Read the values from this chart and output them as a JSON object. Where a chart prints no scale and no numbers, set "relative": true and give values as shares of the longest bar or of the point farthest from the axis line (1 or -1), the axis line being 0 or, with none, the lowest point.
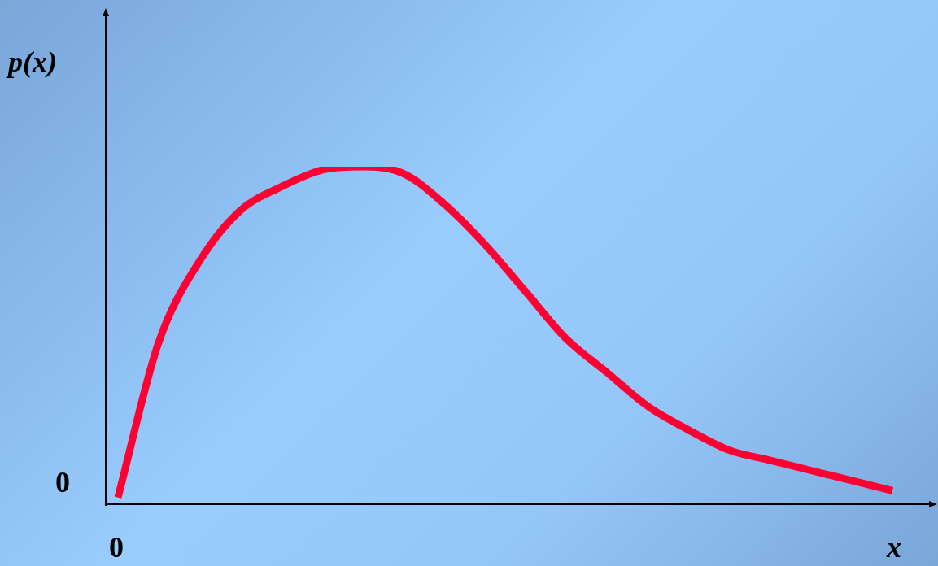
{
  "chart_data": {
    "type": "line",
    "relative": true,
    "xlabel": "x",
    "ylabel": "p(x)",
    "color": "#ff0033",
    "marker": "none",
    "line_style": "solid",
    "legend": false,
    "annotations": [
      "0",
      "0"
    ],
    "categories": [
      null,
      null,
      null,
      null,
      null,
      null,
      null,
      null,
      null,
      null,
      null,
      null,
      null,
      null,
      null,
      null,
      null,
      null,
      null,
      null
    ],
    "values": [
      0.02,
      0.48,
      0.72,
      0.87,
      0.94,
      0.99,
      1.0,
      0.98,
      0.89,
      0.77,
      0.63,
      0.49,
      0.39,
      0.29,
      0.22,
      0.16,
      0.13,
      0.1,
      0.07,
      0.04
    ]
  }
}
